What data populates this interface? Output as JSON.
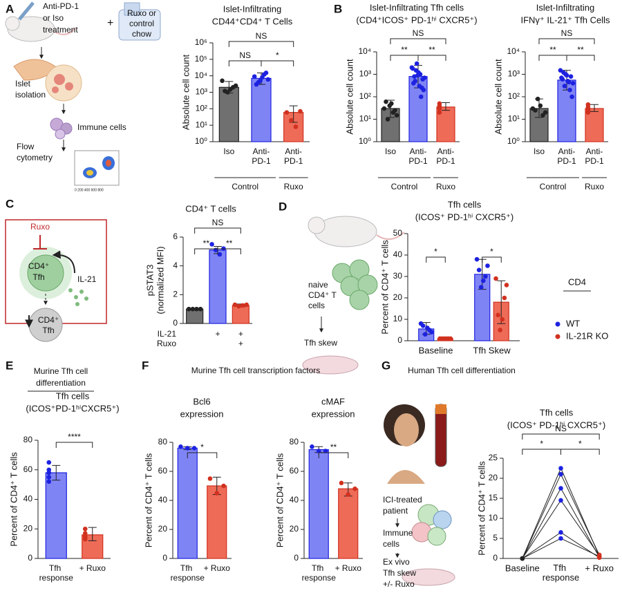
{
  "panel_letters": [
    "A",
    "B",
    "C",
    "D",
    "E",
    "F",
    "G"
  ],
  "panel_headers": [
    [
      "Murine Tfh cell",
      "differentiation"
    ],
    [
      "Murine Tfh cell transcription factors"
    ],
    [
      "Human Tfh cell differentiation"
    ]
  ],
  "illustration_labels": [
    "Anti-PD-1",
    "or Iso",
    "treatment",
    "+",
    "Ruxo or",
    "control",
    "chow",
    "Islet",
    "isolation",
    "Immune cells",
    "Flow",
    "cytometry",
    "0 200 400 600 800",
    "Ruxo",
    "CD4⁺",
    "Tfh",
    "IL-21",
    "CD4⁺",
    "Tfh",
    "naive",
    "CD4⁺ T",
    "cells",
    "Tfh skew",
    "ICI-treated",
    "patient",
    "Immune",
    "cells",
    "Ex vivo",
    "Tfh skew",
    "+/- Ruxo"
  ],
  "chart_data": [
    {
      "type": "bar",
      "title": [
        "Islet-Infiltrating",
        "CD44⁺CD4⁺ T Cells"
      ],
      "ylabel": "Absolute cell count",
      "log_y": true,
      "categories": [
        "Iso",
        "Anti-PD-1",
        "Anti-PD-1"
      ],
      "group_labels": [
        "Control",
        "Ruxo"
      ],
      "values": [
        2000,
        7000,
        60
      ],
      "errors": [
        [
          900,
          4500
        ],
        [
          3000,
          15000
        ],
        [
          15,
          150
        ]
      ],
      "points": [
        [
          5000,
          2500,
          2000,
          1500,
          1000,
          1200
        ],
        [
          9000,
          12000,
          4000,
          6000,
          8000,
          3000,
          15000,
          5000
        ],
        [
          60,
          20,
          8,
          70
        ]
      ],
      "colors": [
        "#707070",
        "#7f84f5",
        "#ee6b57"
      ],
      "point_colors": [
        "#222222",
        "#1d22e0",
        "#d1311f"
      ],
      "ylim": [
        1,
        1000000
      ],
      "yticks": [
        {
          "value": 1,
          "label": "10⁰"
        },
        {
          "value": 10,
          "label": "10¹"
        },
        {
          "value": 100,
          "label": "10²"
        },
        {
          "value": 1000,
          "label": "10³"
        },
        {
          "value": 10000,
          "label": "10⁴"
        },
        {
          "value": 100000,
          "label": "10⁵"
        },
        {
          "value": 1000000,
          "label": "10⁶"
        }
      ],
      "annotations": [
        "NS",
        "NS",
        "*"
      ]
    },
    {
      "type": "bar",
      "title": [
        "Islet-Infiltrating Tfh cells",
        "(CD4⁺ICOS⁺ PD-1ʰⁱ CXCR5⁺)"
      ],
      "ylabel": "Absolute cell count",
      "log_y": true,
      "categories": [
        "Iso",
        "Anti-PD-1",
        "Anti-PD-1"
      ],
      "group_labels": [
        "Control",
        "Ruxo"
      ],
      "values": [
        30,
        800,
        35
      ],
      "errors": [
        [
          12,
          70
        ],
        [
          250,
          2500
        ],
        [
          25,
          55
        ]
      ],
      "points": [
        [
          30,
          20,
          10,
          15,
          50,
          60,
          25,
          40
        ],
        [
          2000,
          1500,
          1000,
          700,
          500,
          300,
          200,
          800,
          1200,
          600,
          400,
          900,
          250,
          1800,
          3000,
          100
        ],
        [
          40,
          30,
          20,
          50,
          35
        ]
      ],
      "colors": [
        "#707070",
        "#7f84f5",
        "#ee6b57"
      ],
      "point_colors": [
        "#222222",
        "#1d22e0",
        "#d1311f"
      ],
      "ylim": [
        1,
        10000
      ],
      "yticks": [
        {
          "value": 1,
          "label": "10⁰"
        },
        {
          "value": 10,
          "label": "10¹"
        },
        {
          "value": 100,
          "label": "10²"
        },
        {
          "value": 1000,
          "label": "10³"
        },
        {
          "value": 10000,
          "label": "10⁴"
        }
      ],
      "annotations": [
        "NS",
        "**",
        "**"
      ]
    },
    {
      "type": "bar",
      "title": [
        "Islet-Infiltrating",
        "IFNγ⁺ IL-21⁺ Tfh Cells"
      ],
      "ylabel": "Absolute cell count",
      "log_y": true,
      "categories": [
        "Iso",
        "Anti-PD-1",
        "Anti-PD-1"
      ],
      "group_labels": [
        "Control",
        "Ruxo"
      ],
      "values": [
        30,
        550,
        30
      ],
      "errors": [
        [
          12,
          80
        ],
        [
          200,
          1500
        ],
        [
          22,
          45
        ]
      ],
      "points": [
        [
          30,
          20,
          15,
          40,
          80,
          25
        ],
        [
          1500,
          1000,
          800,
          600,
          500,
          400,
          300,
          200,
          700,
          900,
          100,
          1200,
          450
        ],
        [
          35,
          25,
          20,
          45,
          30
        ]
      ],
      "colors": [
        "#707070",
        "#7f84f5",
        "#ee6b57"
      ],
      "point_colors": [
        "#222222",
        "#1d22e0",
        "#d1311f"
      ],
      "ylim": [
        1,
        10000
      ],
      "yticks": [
        {
          "value": 1,
          "label": "10⁰"
        },
        {
          "value": 10,
          "label": "10¹"
        },
        {
          "value": 100,
          "label": "10²"
        },
        {
          "value": 1000,
          "label": "10³"
        },
        {
          "value": 10000,
          "label": "10⁴"
        }
      ],
      "annotations": [
        "NS",
        "**",
        "**"
      ]
    },
    {
      "type": "bar",
      "title": [
        "CD4⁺ T cells"
      ],
      "ylabel": [
        "pSTAT3",
        "(normalized MFI)"
      ],
      "row_labels": [
        "IL-21",
        "Ruxo"
      ],
      "rows": [
        [
          null,
          "+",
          "+"
        ],
        [
          null,
          null,
          "+"
        ]
      ],
      "values": [
        1,
        5.1,
        1.25
      ],
      "errors": [
        [
          0.97,
          1.03
        ],
        [
          4.85,
          5.35
        ],
        [
          1.15,
          1.35
        ]
      ],
      "points": [
        [
          1,
          1,
          1,
          1
        ],
        [
          5.5,
          5.1,
          4.8,
          5.2
        ],
        [
          1.3,
          1.2,
          1.25,
          1.3
        ]
      ],
      "colors": [
        "#707070",
        "#7f84f5",
        "#ee6b57"
      ],
      "point_colors": [
        "#222222",
        "#1d22e0",
        "#d1311f"
      ],
      "ylim": [
        0,
        6
      ],
      "yticks": [
        0,
        2,
        4,
        6
      ],
      "annotations": [
        "NS",
        "**",
        "**"
      ]
    },
    {
      "type": "grouped_bar",
      "title": [
        "Tfh cells",
        "(ICOS⁺ PD-1ʰⁱ CXCR5⁺)"
      ],
      "ylabel": "Percent of CD4⁺ T cells",
      "categories": [
        "Baseline",
        "Tfh Skew"
      ],
      "legend_title": "CD4",
      "legend": "right",
      "series": [
        {
          "name": "WT",
          "color": "#7f84f5",
          "point_color": "#1d22e0",
          "values": [
            5.5,
            31
          ],
          "errors": [
            [
              3,
              8.5
            ],
            [
              24,
              38
            ]
          ],
          "points": [
            [
              8,
              4,
              5,
              6,
              3,
              7
            ],
            [
              38,
              35,
              30,
              28,
              25,
              33
            ]
          ]
        },
        {
          "name": "IL-21R KO",
          "color": "#ee6b57",
          "point_color": "#d1311f",
          "values": [
            1,
            18
          ],
          "errors": [
            [
              0.5,
              1.5
            ],
            [
              8,
              28
            ]
          ],
          "points": [
            [
              1,
              1,
              1,
              1,
              1,
              1
            ],
            [
              29,
              26,
              20,
              10,
              5,
              12
            ]
          ]
        }
      ],
      "ylim": [
        0,
        50
      ],
      "yticks": [
        0,
        10,
        20,
        30,
        40,
        50
      ],
      "annotations": [
        "*",
        "*"
      ]
    },
    {
      "type": "bar",
      "title": [
        "Tfh cells",
        "(ICOS⁺PD-1ʰⁱCXCR5⁺)"
      ],
      "ylabel": "Percent of CD4⁺ T cells",
      "categories": [
        "Tfh response",
        "+ Ruxo"
      ],
      "values": [
        58,
        16
      ],
      "errors": [
        [
          53,
          63
        ],
        [
          12,
          21
        ]
      ],
      "points": [
        [
          65,
          60,
          58,
          55,
          52
        ],
        [
          20,
          17,
          15,
          14,
          13
        ]
      ],
      "colors": [
        "#7f84f5",
        "#ee6b57"
      ],
      "point_colors": [
        "#1d22e0",
        "#d1311f"
      ],
      "ylim": [
        0,
        80
      ],
      "yticks": [
        0,
        20,
        40,
        60,
        80
      ],
      "annotations": [
        "****"
      ]
    },
    {
      "type": "bar",
      "title": [
        "Bcl6",
        "expression"
      ],
      "ylabel": "Percent of CD4⁺ T cells",
      "categories": [
        "Tfh response",
        "+ Ruxo"
      ],
      "values": [
        76,
        50
      ],
      "errors": [
        [
          75,
          77
        ],
        [
          44,
          56
        ]
      ],
      "points": [
        [
          77,
          76,
          76
        ],
        [
          55,
          50,
          45
        ]
      ],
      "colors": [
        "#7f84f5",
        "#ee6b57"
      ],
      "point_colors": [
        "#1d22e0",
        "#d1311f"
      ],
      "ylim": [
        0,
        80
      ],
      "yticks": [
        0,
        20,
        40,
        60,
        80
      ],
      "annotations": [
        "*"
      ]
    },
    {
      "type": "bar",
      "title": [
        "cMAF",
        "expression"
      ],
      "ylabel": "Percent of CD4⁺ T cells",
      "categories": [
        "Tfh response",
        "+ Ruxo"
      ],
      "values": [
        75,
        48
      ],
      "errors": [
        [
          73,
          77
        ],
        [
          43,
          52
        ]
      ],
      "points": [
        [
          77,
          74,
          74
        ],
        [
          52,
          48,
          44
        ]
      ],
      "colors": [
        "#7f84f5",
        "#ee6b57"
      ],
      "point_colors": [
        "#1d22e0",
        "#d1311f"
      ],
      "ylim": [
        0,
        80
      ],
      "yticks": [
        0,
        20,
        40,
        60,
        80
      ],
      "annotations": [
        "**"
      ]
    },
    {
      "type": "line",
      "title": [
        "Tfh cells",
        "(ICOS⁺ PD-1ʰⁱ CXCR5⁺)"
      ],
      "ylabel": "Percent of CD4⁺ T cells",
      "categories": [
        "Baseline",
        "Tfh response",
        "+ Ruxo"
      ],
      "marker_colors": [
        "#222222",
        "#1d22e0",
        "#d1311f"
      ],
      "line_color": "#222222",
      "series": [
        {
          "values": [
            0,
            22.5,
            0.6
          ]
        },
        {
          "values": [
            0,
            21,
            0.9
          ]
        },
        {
          "values": [
            0,
            17.5,
            0.3
          ]
        },
        {
          "values": [
            0,
            14.5,
            0.7
          ]
        },
        {
          "values": [
            0,
            6.5,
            0.2
          ]
        },
        {
          "values": [
            0,
            5,
            0.5
          ]
        }
      ],
      "ylim": [
        0,
        25
      ],
      "yticks": [
        0,
        5,
        10,
        15,
        20,
        25
      ],
      "annotations": [
        "NS",
        "*",
        "*"
      ]
    }
  ]
}
